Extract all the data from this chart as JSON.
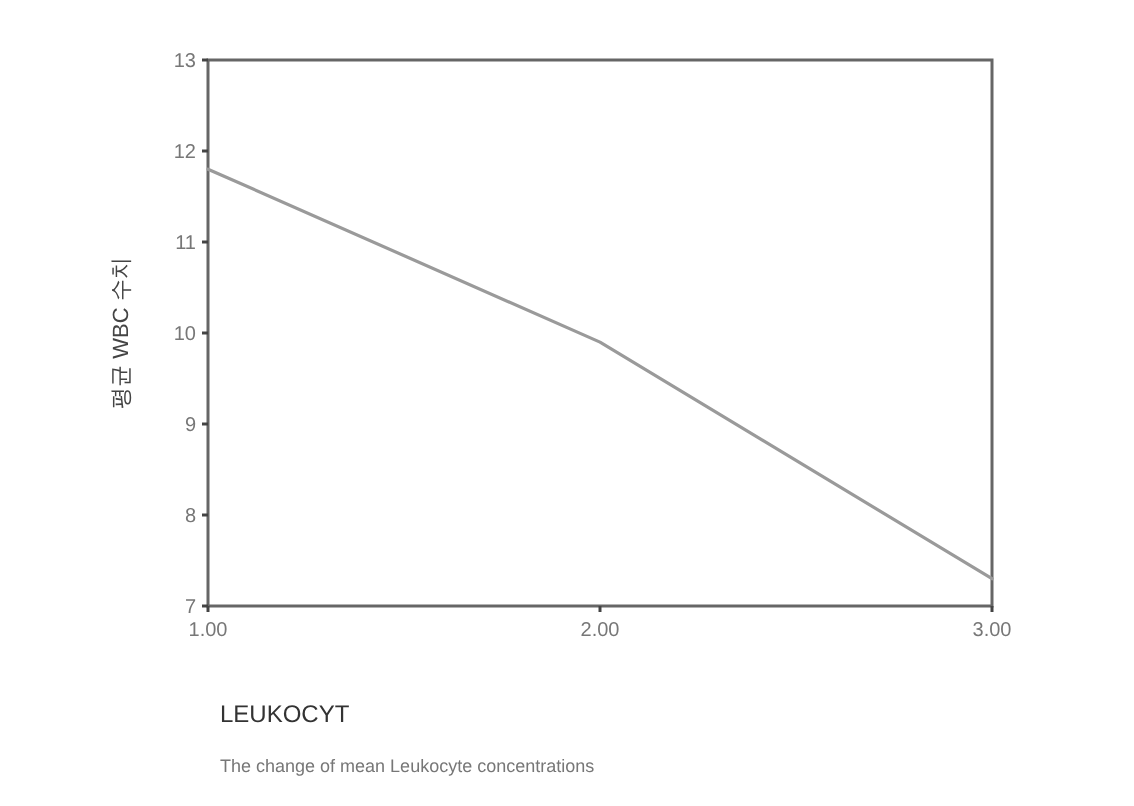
{
  "chart_data": {
    "type": "line",
    "xlabel": "LEUKOCYT",
    "ylabel": "평균 WBC 수치",
    "annotations": [
      "The change of mean Leukocyte concentrations"
    ],
    "x": [
      1,
      2,
      3
    ],
    "series": [
      {
        "color": "#9a9a9a",
        "values": [
          11.8,
          9.9,
          7.3
        ]
      }
    ],
    "xlim": [
      1,
      3
    ],
    "ylim": [
      7,
      13
    ],
    "xticks": [
      {
        "value": 1,
        "label": "1.00"
      },
      {
        "value": 2,
        "label": "2.00"
      },
      {
        "value": 3,
        "label": "3.00"
      }
    ],
    "yticks": [
      7,
      8,
      9,
      10,
      11,
      12,
      13
    ],
    "grid": false,
    "marker": "none",
    "line_style": "solid"
  }
}
